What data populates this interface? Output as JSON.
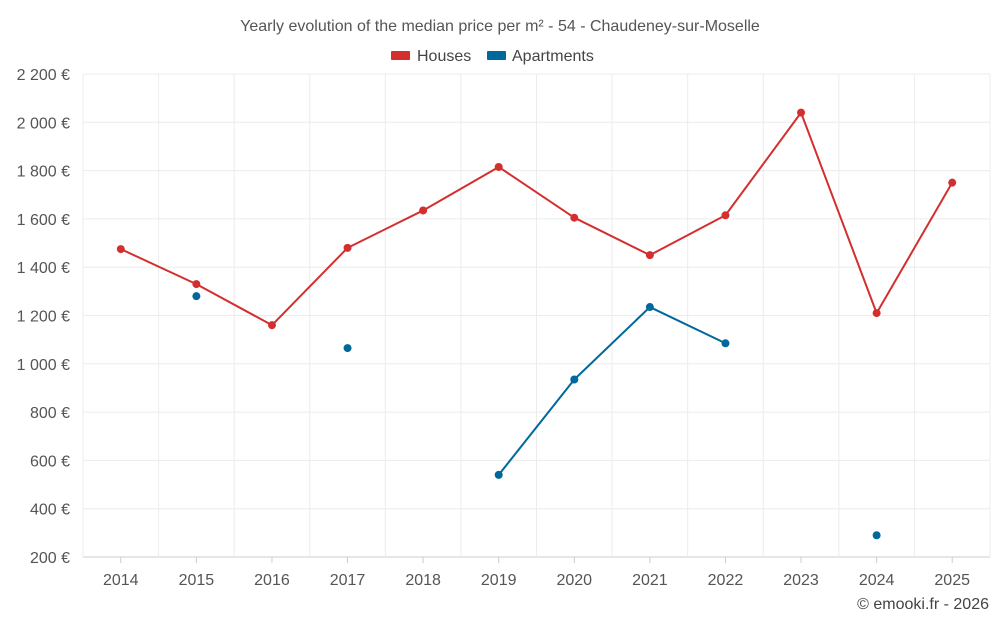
{
  "chart_data": {
    "type": "line",
    "title": "Yearly evolution of the median price per m² - 54 - Chaudeney-sur-Moselle",
    "categories": [
      "2014",
      "2015",
      "2016",
      "2017",
      "2018",
      "2019",
      "2020",
      "2021",
      "2022",
      "2023",
      "2024",
      "2025"
    ],
    "y_ticks": [
      {
        "value": 200,
        "label": "200 €"
      },
      {
        "value": 400,
        "label": "400 €"
      },
      {
        "value": 600,
        "label": "600 €"
      },
      {
        "value": 800,
        "label": "800 €"
      },
      {
        "value": 1000,
        "label": "1 000 €"
      },
      {
        "value": 1200,
        "label": "1 200 €"
      },
      {
        "value": 1400,
        "label": "1 400 €"
      },
      {
        "value": 1600,
        "label": "1 600 €"
      },
      {
        "value": 1800,
        "label": "1 800 €"
      },
      {
        "value": 2000,
        "label": "2 000 €"
      },
      {
        "value": 2200,
        "label": "2 200 €"
      }
    ],
    "ylim": [
      200,
      2200
    ],
    "grid": true,
    "legend_position": "top-center",
    "series": [
      {
        "name": "Houses",
        "color": "#d32f2f",
        "values": [
          1475,
          1330,
          1160,
          1480,
          1635,
          1815,
          1605,
          1450,
          1615,
          2040,
          1210,
          1750
        ]
      },
      {
        "name": "Apartments",
        "color": "#01689b",
        "values": [
          null,
          1280,
          null,
          1065,
          null,
          540,
          935,
          1235,
          1085,
          null,
          290,
          null
        ]
      }
    ],
    "credit": "© emooki.fr - 2026"
  }
}
